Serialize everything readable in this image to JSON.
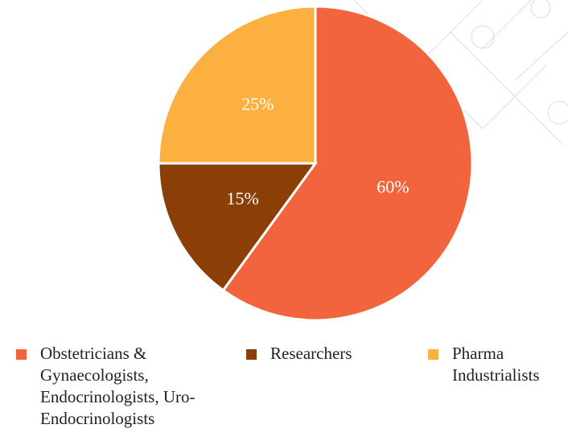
{
  "chart_data": {
    "type": "pie",
    "categories": [
      "Obstetricians & Gynaecologists, Endocrinologists, Uro-Endocrinologists",
      "Researchers",
      "Pharma Industrialists"
    ],
    "values": [
      60,
      15,
      25
    ],
    "value_labels": [
      "60%",
      "15%",
      "25%"
    ],
    "colors": [
      "#f2643d",
      "#8b3e05",
      "#fbb040"
    ]
  }
}
